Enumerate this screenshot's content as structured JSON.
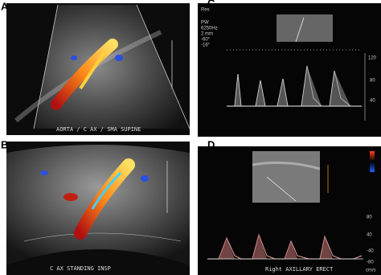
{
  "panels": [
    {
      "label": "A",
      "caption": "AORTA / C AX / SMA SUPINE"
    },
    {
      "label": "B",
      "caption": "C AX STANDING INSP"
    },
    {
      "label": "C",
      "header": [
        "Res",
        "PW",
        "6250Hz",
        "2 mm",
        "-60°",
        "-16°"
      ],
      "scale": [
        "120",
        "80",
        "40"
      ]
    },
    {
      "label": "D",
      "caption": "Right AXILLARY ERECT",
      "scale": [
        "80",
        "40",
        "-40",
        "-80"
      ],
      "unit": "cm/s"
    }
  ]
}
